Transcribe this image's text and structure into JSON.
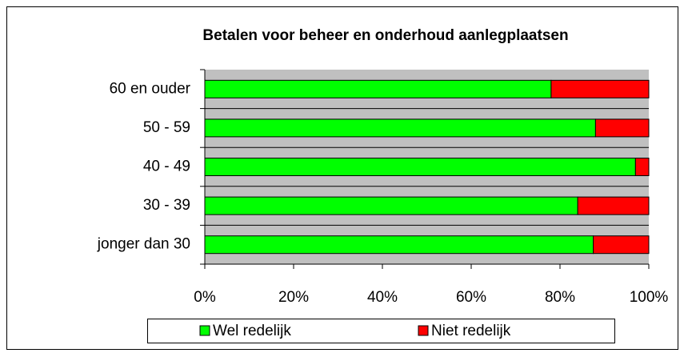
{
  "chart_data": {
    "type": "stacked_bar_horizontal",
    "title": "Betalen voor beheer en onderhoud aanlegplaatsen",
    "categories": [
      "60 en ouder",
      "50 - 59",
      "40 - 49",
      "30 - 39",
      "jonger dan 30"
    ],
    "series": [
      {
        "name": "Wel redelijk",
        "color": "#00ff00",
        "values": [
          78,
          88,
          97,
          84,
          87.5
        ]
      },
      {
        "name": "Niet redelijk",
        "color": "#ff0000",
        "values": [
          22,
          12,
          3,
          16,
          12.5
        ]
      }
    ],
    "xlim": [
      0,
      100
    ],
    "xticks": [
      {
        "value": 0,
        "label": "0%"
      },
      {
        "value": 20,
        "label": "20%"
      },
      {
        "value": 40,
        "label": "40%"
      },
      {
        "value": 60,
        "label": "60%"
      },
      {
        "value": 80,
        "label": "80%"
      },
      {
        "value": 100,
        "label": "100%"
      }
    ],
    "legend": "bottom"
  }
}
